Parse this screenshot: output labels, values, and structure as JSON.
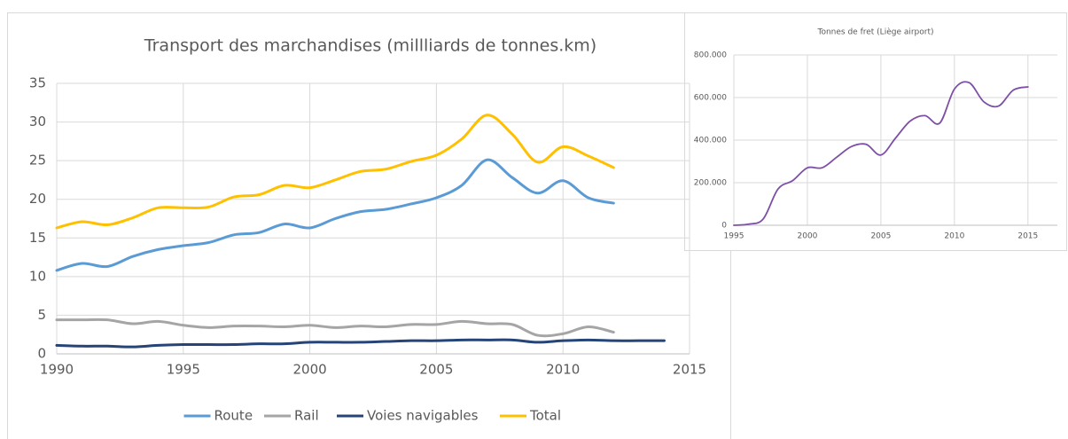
{
  "chart_data": [
    {
      "type": "line",
      "title": "Transport des marchandises (millliards de tonnes.km)",
      "x": [
        1990,
        1991,
        1992,
        1993,
        1994,
        1995,
        1996,
        1997,
        1998,
        1999,
        2000,
        2001,
        2002,
        2003,
        2004,
        2005,
        2006,
        2007,
        2008,
        2009,
        2010,
        2011,
        2012,
        2013,
        2014
      ],
      "series": [
        {
          "name": "Route",
          "color": "#5b9bd5",
          "values": [
            10.8,
            11.7,
            11.3,
            12.6,
            13.5,
            14.0,
            14.4,
            15.4,
            15.7,
            16.8,
            16.3,
            17.5,
            18.4,
            18.7,
            19.4,
            20.2,
            21.8,
            25.1,
            22.8,
            20.8,
            22.4,
            20.2,
            19.5,
            null,
            null
          ]
        },
        {
          "name": "Rail",
          "color": "#a5a5a5",
          "values": [
            4.4,
            4.4,
            4.4,
            3.9,
            4.2,
            3.7,
            3.4,
            3.6,
            3.6,
            3.5,
            3.7,
            3.4,
            3.6,
            3.5,
            3.8,
            3.8,
            4.2,
            3.9,
            3.8,
            2.4,
            2.6,
            3.5,
            2.8,
            null,
            null
          ]
        },
        {
          "name": "Voies navigables",
          "color": "#264478",
          "values": [
            1.1,
            1.0,
            1.0,
            0.9,
            1.1,
            1.2,
            1.2,
            1.2,
            1.3,
            1.3,
            1.5,
            1.5,
            1.5,
            1.6,
            1.7,
            1.7,
            1.8,
            1.8,
            1.8,
            1.5,
            1.7,
            1.8,
            1.7,
            1.7,
            1.7
          ]
        },
        {
          "name": "Total",
          "color": "#ffc000",
          "values": [
            16.3,
            17.1,
            16.7,
            17.6,
            18.9,
            18.9,
            19.0,
            20.3,
            20.6,
            21.8,
            21.5,
            22.5,
            23.6,
            23.9,
            24.9,
            25.7,
            27.8,
            30.9,
            28.4,
            24.8,
            26.8,
            25.6,
            24.1,
            null,
            null
          ]
        }
      ],
      "xlim": [
        1990,
        2015
      ],
      "xticks": [
        1990,
        1995,
        2000,
        2005,
        2010,
        2015
      ],
      "ylim": [
        0,
        35
      ],
      "yticks": [
        0,
        5,
        10,
        15,
        20,
        25,
        30,
        35
      ],
      "grid": true,
      "legend": "bottom"
    },
    {
      "type": "line",
      "title": "Tonnes de fret (Liège airport)",
      "x": [
        1995,
        1996,
        1997,
        1998,
        1999,
        2000,
        2001,
        2002,
        2003,
        2004,
        2005,
        2006,
        2007,
        2008,
        2009,
        2010,
        2011,
        2012,
        2013,
        2014,
        2015
      ],
      "series": [
        {
          "color": "#7e4fa6",
          "values": [
            0,
            5000,
            30000,
            170000,
            210000,
            270000,
            270000,
            320000,
            370000,
            380000,
            330000,
            410000,
            490000,
            515000,
            480000,
            640000,
            670000,
            580000,
            560000,
            635000,
            650000
          ]
        }
      ],
      "xlim": [
        1995,
        2017
      ],
      "xticks": [
        1995,
        2000,
        2005,
        2010,
        2015
      ],
      "ylim": [
        0,
        800000
      ],
      "yticks": [
        0,
        {
          "value": 200000,
          "label": "200.000"
        },
        {
          "value": 400000,
          "label": "400.000"
        },
        {
          "value": 600000,
          "label": "600.000"
        },
        {
          "value": 800000,
          "label": "800.000"
        }
      ],
      "grid": true
    }
  ]
}
